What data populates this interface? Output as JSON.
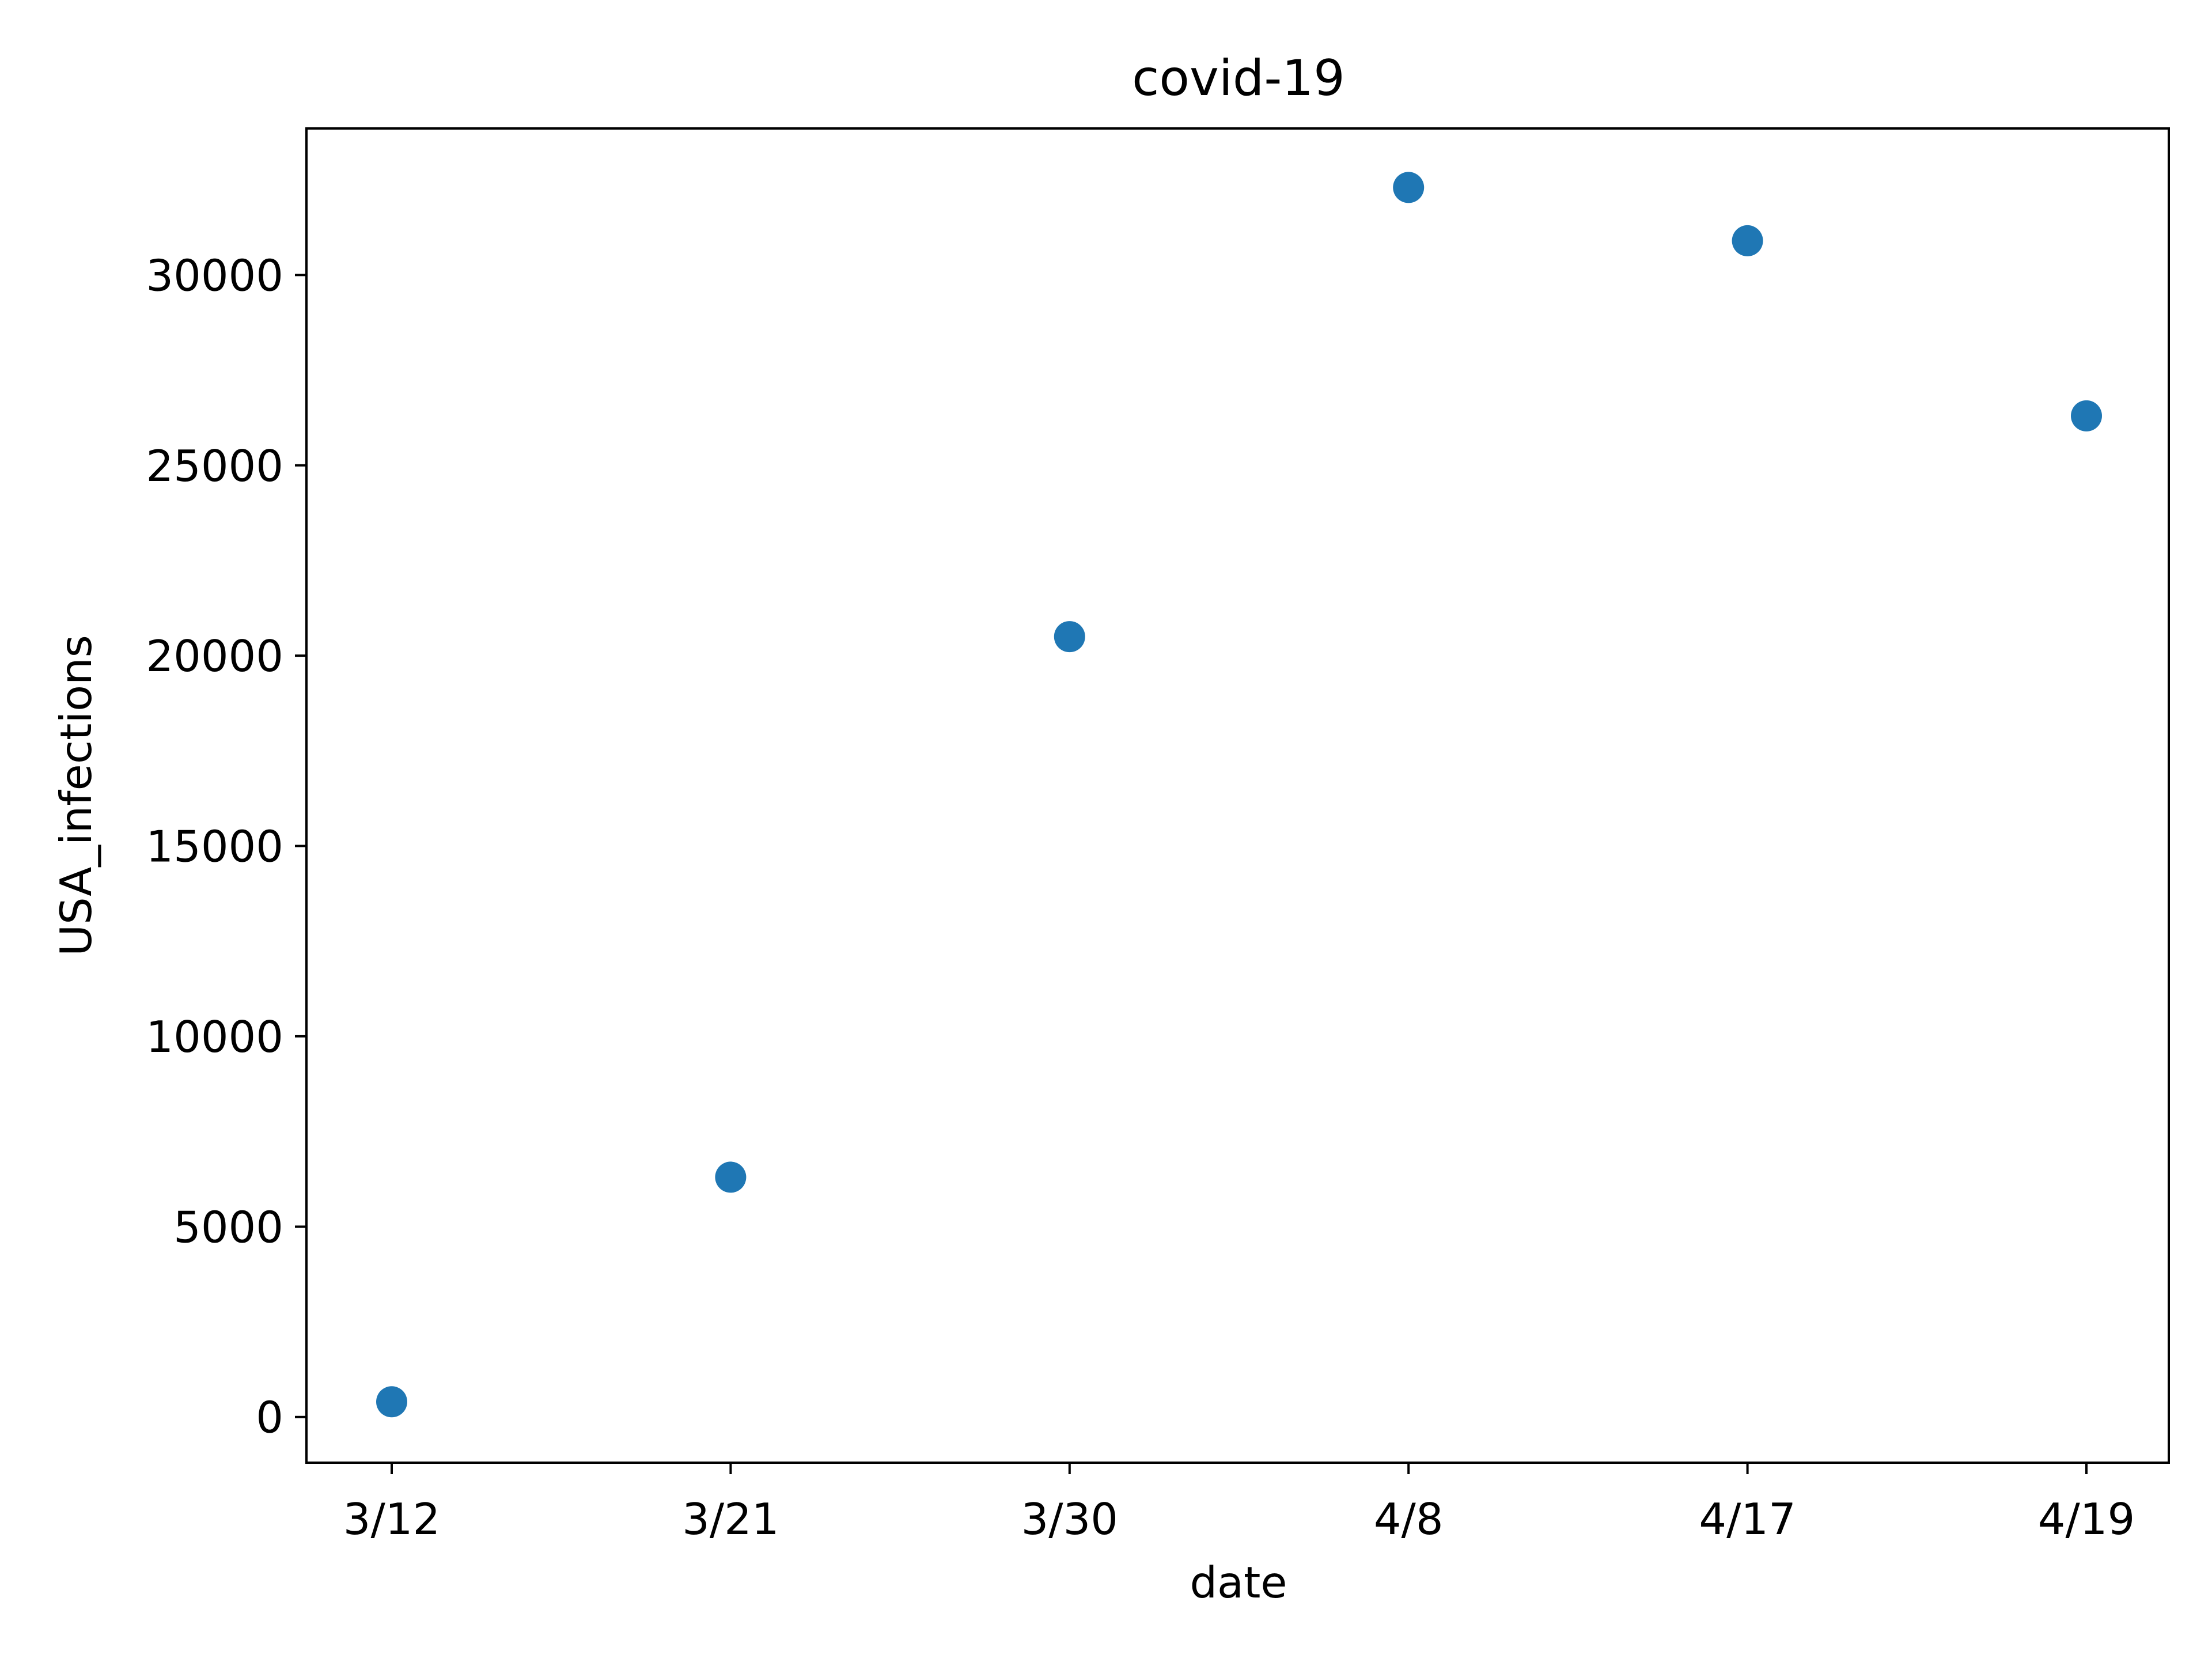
{
  "chart_data": {
    "type": "scatter",
    "title": "covid-19",
    "xlabel": "date",
    "ylabel": "USA_infections",
    "categories": [
      "3/12",
      "3/21",
      "3/30",
      "4/8",
      "4/17",
      "4/19"
    ],
    "series": [
      {
        "values": [
          400,
          6300,
          20500,
          32300,
          30900,
          26300
        ],
        "color": "#1f77b4"
      }
    ],
    "y_ticks": [
      0,
      5000,
      10000,
      15000,
      20000,
      25000,
      30000
    ],
    "ylim": [
      -1200,
      33850
    ],
    "grid": false,
    "legend": "none"
  }
}
